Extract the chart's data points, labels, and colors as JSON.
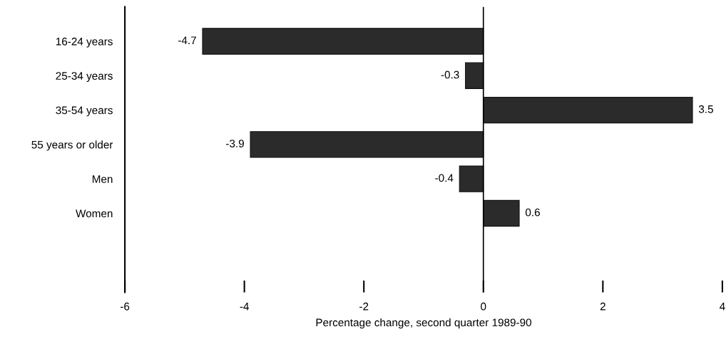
{
  "chart_data": {
    "type": "bar",
    "orientation": "horizontal",
    "xlabel": "Percentage change, second quarter 1989-90",
    "categories": [
      "16-24 years",
      "25-34 years",
      "35-54 years",
      "55 years or older",
      "Men",
      "Women"
    ],
    "values": [
      -4.7,
      -0.3,
      3.5,
      -3.9,
      -0.4,
      0.6
    ],
    "color": "#2b2b2b",
    "xlim": [
      -6,
      4
    ],
    "xticks": [
      -6,
      -4,
      -2,
      0,
      2,
      4
    ],
    "data_labels": true
  }
}
